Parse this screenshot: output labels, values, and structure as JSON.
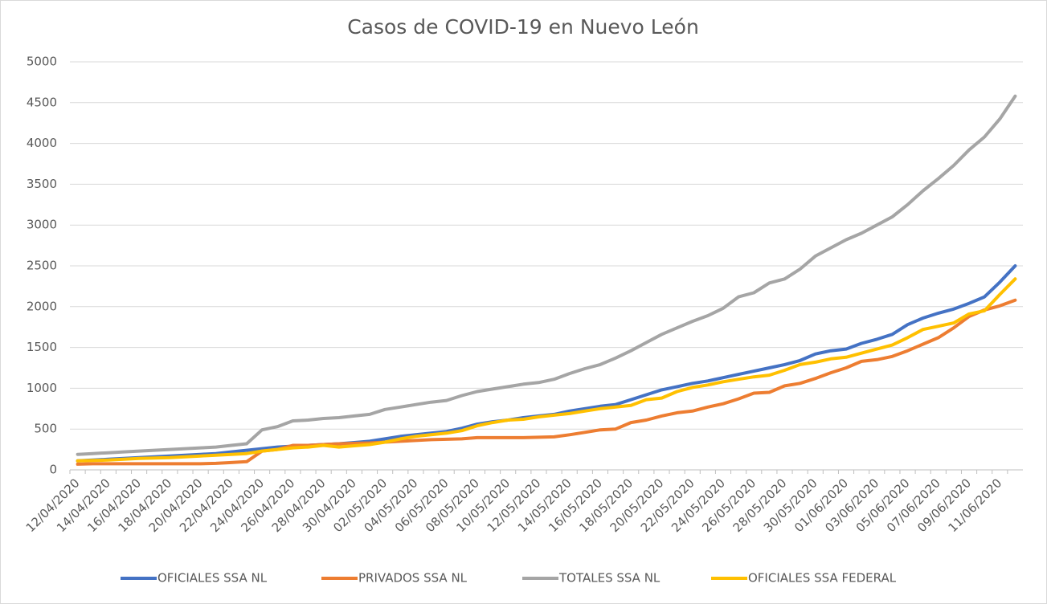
{
  "chart_data": {
    "type": "line",
    "title": "Casos de COVID-19 en Nuevo León",
    "categories": [
      "12/04/2020",
      null,
      "14/04/2020",
      null,
      "16/04/2020",
      null,
      "18/04/2020",
      null,
      "20/04/2020",
      null,
      "22/04/2020",
      null,
      "24/04/2020",
      null,
      "26/04/2020",
      null,
      "28/04/2020",
      null,
      "30/04/2020",
      null,
      "02/05/2020",
      null,
      "04/05/2020",
      null,
      "06/05/2020",
      null,
      "08/05/2020",
      null,
      "10/05/2020",
      null,
      "12/05/2020",
      null,
      "14/05/2020",
      null,
      "16/05/2020",
      null,
      "18/05/2020",
      null,
      "20/05/2020",
      null,
      "22/05/2020",
      null,
      "24/05/2020",
      null,
      "26/05/2020",
      null,
      "28/05/2020",
      null,
      "30/05/2020",
      null,
      "01/06/2020",
      null,
      "03/06/2020",
      null,
      "05/06/2020",
      null,
      "07/06/2020",
      null,
      "09/06/2020",
      null,
      "11/06/2020",
      null
    ],
    "series": [
      {
        "name": "OFICIALES SSA NL",
        "color": "#4472c4",
        "values": [
          110,
          120,
          130,
          140,
          150,
          160,
          170,
          180,
          190,
          200,
          220,
          240,
          260,
          280,
          290,
          300,
          310,
          320,
          335,
          350,
          380,
          410,
          430,
          450,
          470,
          510,
          560,
          590,
          610,
          640,
          660,
          680,
          720,
          750,
          780,
          800,
          860,
          920,
          980,
          1020,
          1060,
          1090,
          1130,
          1170,
          1210,
          1250,
          1290,
          1340,
          1420,
          1460,
          1480,
          1550,
          1600,
          1660,
          1780,
          1860,
          1920,
          1970,
          2040,
          2120,
          2300,
          2500
        ]
      },
      {
        "name": "PRIVADOS SSA NL",
        "color": "#ed7d31",
        "values": [
          70,
          75,
          75,
          75,
          75,
          75,
          75,
          75,
          75,
          80,
          90,
          100,
          230,
          250,
          300,
          300,
          310,
          320,
          325,
          330,
          340,
          350,
          360,
          370,
          375,
          380,
          395,
          395,
          395,
          395,
          400,
          405,
          430,
          460,
          490,
          500,
          580,
          610,
          660,
          700,
          720,
          770,
          810,
          870,
          940,
          950,
          1030,
          1060,
          1120,
          1190,
          1250,
          1330,
          1350,
          1390,
          1460,
          1540,
          1620,
          1740,
          1880,
          1960,
          2010,
          2080
        ]
      },
      {
        "name": "TOTALES SSA NL",
        "color": "#a5a5a5",
        "values": [
          190,
          200,
          210,
          220,
          230,
          240,
          250,
          260,
          270,
          280,
          300,
          320,
          490,
          530,
          600,
          610,
          630,
          640,
          660,
          680,
          740,
          770,
          800,
          830,
          850,
          910,
          960,
          990,
          1020,
          1050,
          1070,
          1110,
          1180,
          1240,
          1290,
          1370,
          1460,
          1560,
          1660,
          1740,
          1820,
          1890,
          1980,
          2120,
          2170,
          2290,
          2340,
          2460,
          2620,
          2720,
          2820,
          2900,
          3000,
          3100,
          3250,
          3420,
          3570,
          3730,
          3920,
          4080,
          4300,
          4580
        ]
      },
      {
        "name": "OFICIALES SSA FEDERAL",
        "color": "#ffc000",
        "values": [
          110,
          115,
          120,
          130,
          140,
          145,
          150,
          160,
          170,
          180,
          190,
          200,
          230,
          250,
          270,
          280,
          300,
          280,
          295,
          310,
          340,
          380,
          410,
          430,
          450,
          480,
          540,
          580,
          610,
          620,
          650,
          670,
          690,
          720,
          750,
          770,
          790,
          860,
          880,
          960,
          1010,
          1040,
          1080,
          1110,
          1140,
          1160,
          1220,
          1290,
          1320,
          1360,
          1380,
          1430,
          1480,
          1530,
          1620,
          1720,
          1760,
          1800,
          1910,
          1950,
          2150,
          2340
        ]
      }
    ],
    "ylim": [
      0,
      5000
    ],
    "yticks": [
      0,
      500,
      1000,
      1500,
      2000,
      2500,
      3000,
      3500,
      4000,
      4500,
      5000
    ],
    "grid": true,
    "legend": "bottom"
  }
}
